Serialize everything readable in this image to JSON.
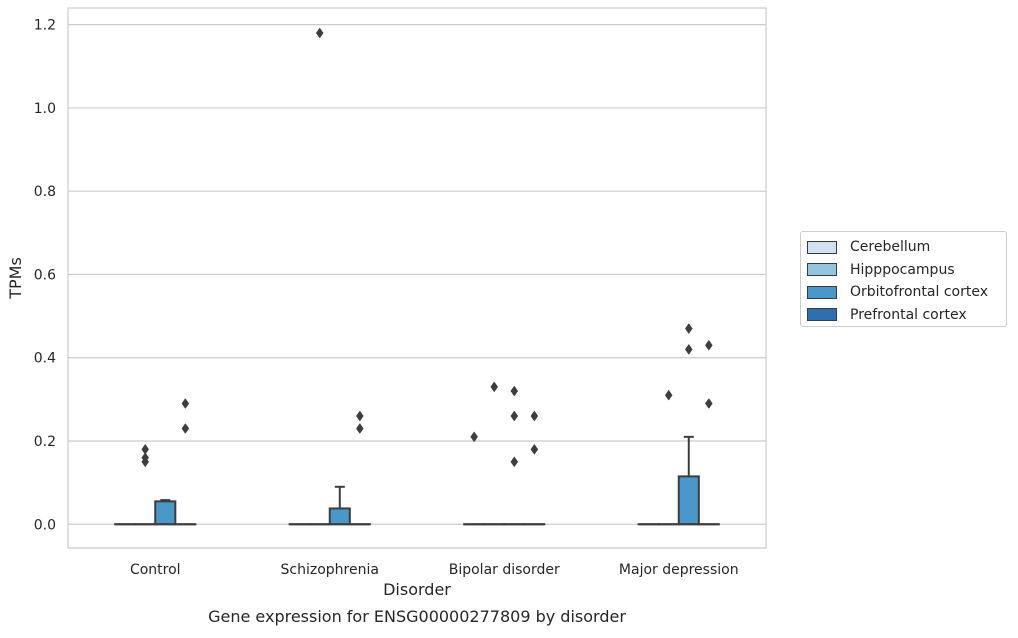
{
  "chart_data": {
    "type": "box",
    "title": "Gene expression for ENSG00000277809 by disorder",
    "xlabel": "Disorder",
    "ylabel": "TPMs",
    "categories": [
      "Control",
      "Schizophrenia",
      "Bipolar disorder",
      "Major depression"
    ],
    "ylim": [
      -0.057,
      1.24
    ],
    "yticks": [
      0.0,
      0.2,
      0.4,
      0.6,
      0.8,
      1.0,
      1.2
    ],
    "ytick_labels": [
      "0.0",
      "0.2",
      "0.4",
      "0.6",
      "0.8",
      "1.0",
      "1.2"
    ],
    "grid": true,
    "legend_position": "right",
    "series": [
      {
        "name": "Cerebellum",
        "color": "#d0e1f2",
        "boxes": [
          {
            "q1": 0,
            "median": 0,
            "q3": 0,
            "whislo": 0,
            "whishi": 0,
            "fliers": []
          },
          {
            "q1": 0,
            "median": 0,
            "q3": 0,
            "whislo": 0,
            "whishi": 0,
            "fliers": []
          },
          {
            "q1": 0,
            "median": 0,
            "q3": 0,
            "whislo": 0,
            "whishi": 0,
            "fliers": [
              0.21
            ]
          },
          {
            "q1": 0,
            "median": 0,
            "q3": 0,
            "whislo": 0,
            "whishi": 0,
            "fliers": []
          }
        ]
      },
      {
        "name": "Hipppocampus",
        "color": "#94c4df",
        "boxes": [
          {
            "q1": 0,
            "median": 0,
            "q3": 0,
            "whislo": 0,
            "whishi": 0,
            "fliers": [
              0.15,
              0.16,
              0.18
            ]
          },
          {
            "q1": 0,
            "median": 0,
            "q3": 0,
            "whislo": 0,
            "whishi": 0,
            "fliers": [
              1.18
            ]
          },
          {
            "q1": 0,
            "median": 0,
            "q3": 0,
            "whislo": 0,
            "whishi": 0,
            "fliers": [
              0.33
            ]
          },
          {
            "q1": 0,
            "median": 0,
            "q3": 0,
            "whislo": 0,
            "whishi": 0,
            "fliers": [
              0.31
            ]
          }
        ]
      },
      {
        "name": "Orbitofrontal cortex",
        "color": "#4a98c9",
        "boxes": [
          {
            "q1": 0,
            "median": 0,
            "q3": 0.055,
            "whislo": 0,
            "whishi": 0.058,
            "fliers": []
          },
          {
            "q1": 0,
            "median": 0,
            "q3": 0.038,
            "whislo": 0,
            "whishi": 0.09,
            "fliers": []
          },
          {
            "q1": 0,
            "median": 0,
            "q3": 0,
            "whislo": 0,
            "whishi": 0,
            "fliers": [
              0.15,
              0.26,
              0.32
            ]
          },
          {
            "q1": 0,
            "median": 0,
            "q3": 0.115,
            "whislo": 0,
            "whishi": 0.21,
            "fliers": [
              0.42,
              0.47
            ]
          }
        ]
      },
      {
        "name": "Prefrontal cortex",
        "color": "#2e6fae",
        "boxes": [
          {
            "q1": 0,
            "median": 0,
            "q3": 0,
            "whislo": 0,
            "whishi": 0,
            "fliers": [
              0.23,
              0.29
            ]
          },
          {
            "q1": 0,
            "median": 0,
            "q3": 0,
            "whislo": 0,
            "whishi": 0,
            "fliers": [
              0.23,
              0.26
            ]
          },
          {
            "q1": 0,
            "median": 0,
            "q3": 0,
            "whislo": 0,
            "whishi": 0,
            "fliers": [
              0.18,
              0.26
            ]
          },
          {
            "q1": 0,
            "median": 0,
            "q3": 0,
            "whislo": 0,
            "whishi": 0,
            "fliers": [
              0.29,
              0.43
            ]
          }
        ]
      }
    ]
  }
}
